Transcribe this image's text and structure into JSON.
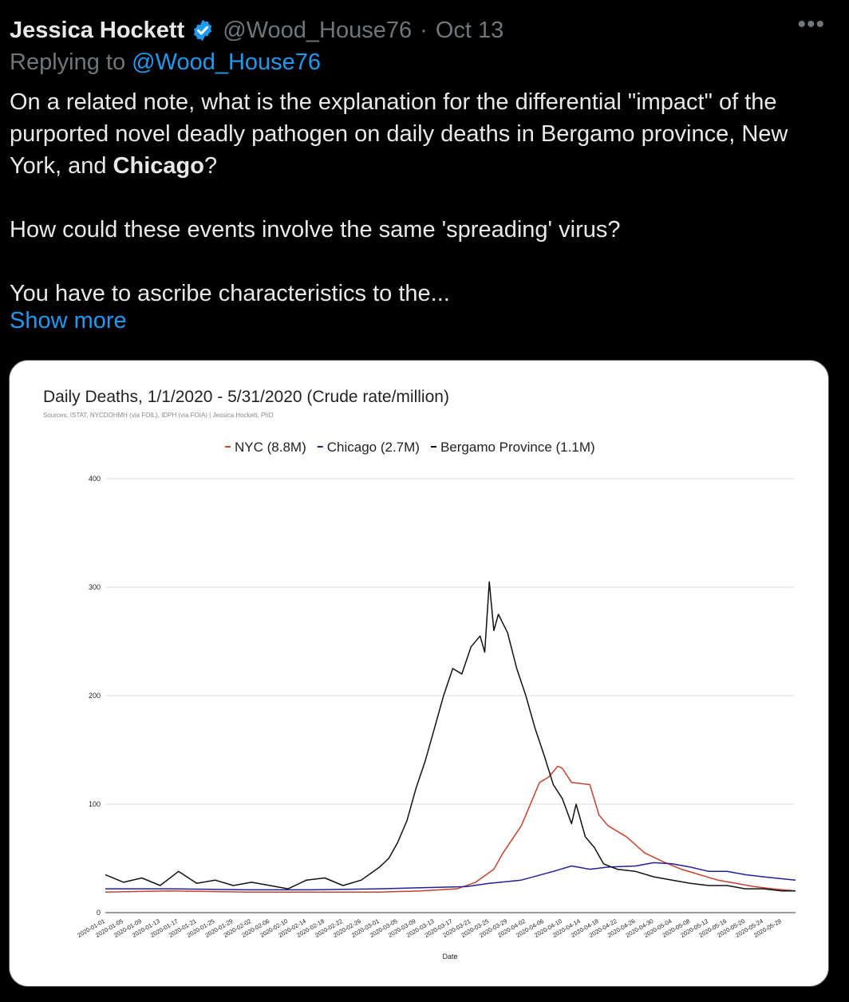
{
  "tweet": {
    "author_name": "Jessica Hockett",
    "handle": "@Wood_House76",
    "separator": "·",
    "date": "Oct 13",
    "more_label": "•••",
    "replying_prefix": "Replying to",
    "replying_handle": "@Wood_House76",
    "text_line1": "On a related note, what is the explanation for the differential \"impact\" of the purported novel deadly pathogen on daily deaths in Bergamo province, New York, and ",
    "text_bold": "Chicago",
    "text_line1_end": "?",
    "text_line2": "How could these events involve the same 'spreading' virus?",
    "text_line3": "You have to ascribe characteristics to the...",
    "show_more": "Show more"
  },
  "colors": {
    "verified_badge": "#1d9bf0",
    "link": "#1d9bf0",
    "nyc": "#c8412d",
    "chicago": "#1f1fa0",
    "bergamo": "#111111"
  },
  "chart_data": {
    "type": "line",
    "title": "Daily Deaths, 1/1/2020 - 5/31/2020 (Crude rate/million)",
    "subtitle": "Sources: ISTAT, NYCDOHMH (via FOIL), IDPH (via FOIA) | Jessica Hockett, PhD",
    "xlabel": "Date",
    "ylabel": "",
    "ylim": [
      0,
      400
    ],
    "yticks": [
      0,
      100,
      200,
      300,
      400
    ],
    "legend_position": "top-center",
    "grid": true,
    "x_tick_labels": [
      "2020-01-01",
      "2020-01-05",
      "2020-01-09",
      "2020-01-13",
      "2020-01-17",
      "2020-01-21",
      "2020-01-25",
      "2020-01-29",
      "2020-02-02",
      "2020-02-06",
      "2020-02-10",
      "2020-02-14",
      "2020-02-18",
      "2020-02-22",
      "2020-02-26",
      "2020-03-01",
      "2020-03-05",
      "2020-03-09",
      "2020-03-13",
      "2020-03-17",
      "2020-03-21",
      "2020-03-25",
      "2020-03-29",
      "2020-04-02",
      "2020-04-06",
      "2020-04-10",
      "2020-04-14",
      "2020-04-18",
      "2020-04-22",
      "2020-04-26",
      "2020-04-30",
      "2020-05-04",
      "2020-05-08",
      "2020-05-12",
      "2020-05-16",
      "2020-05-20",
      "2020-05-24",
      "2020-05-28"
    ],
    "x_start": "2020-01-01",
    "x_end": "2020-05-31",
    "series": [
      {
        "name": "NYC (8.8M)",
        "color": "#c8412d",
        "points": [
          [
            "2020-01-01",
            19
          ],
          [
            "2020-01-15",
            20
          ],
          [
            "2020-02-01",
            19
          ],
          [
            "2020-02-15",
            19
          ],
          [
            "2020-03-01",
            19
          ],
          [
            "2020-03-10",
            20
          ],
          [
            "2020-03-18",
            22
          ],
          [
            "2020-03-22",
            28
          ],
          [
            "2020-03-26",
            40
          ],
          [
            "2020-03-28",
            55
          ],
          [
            "2020-04-01",
            80
          ],
          [
            "2020-04-03",
            100
          ],
          [
            "2020-04-05",
            120
          ],
          [
            "2020-04-07",
            125
          ],
          [
            "2020-04-09",
            135
          ],
          [
            "2020-04-10",
            133
          ],
          [
            "2020-04-12",
            120
          ],
          [
            "2020-04-16",
            118
          ],
          [
            "2020-04-18",
            90
          ],
          [
            "2020-04-20",
            80
          ],
          [
            "2020-04-24",
            70
          ],
          [
            "2020-04-28",
            55
          ],
          [
            "2020-05-02",
            47
          ],
          [
            "2020-05-06",
            40
          ],
          [
            "2020-05-10",
            35
          ],
          [
            "2020-05-14",
            30
          ],
          [
            "2020-05-18",
            27
          ],
          [
            "2020-05-22",
            24
          ],
          [
            "2020-05-26",
            22
          ],
          [
            "2020-05-31",
            20
          ]
        ]
      },
      {
        "name": "Chicago (2.7M)",
        "color": "#1f1fa0",
        "points": [
          [
            "2020-01-01",
            22
          ],
          [
            "2020-01-15",
            22
          ],
          [
            "2020-02-01",
            21
          ],
          [
            "2020-02-15",
            21
          ],
          [
            "2020-03-01",
            22
          ],
          [
            "2020-03-10",
            23
          ],
          [
            "2020-03-20",
            24
          ],
          [
            "2020-03-25",
            27
          ],
          [
            "2020-04-01",
            30
          ],
          [
            "2020-04-08",
            38
          ],
          [
            "2020-04-12",
            43
          ],
          [
            "2020-04-16",
            40
          ],
          [
            "2020-04-20",
            42
          ],
          [
            "2020-04-26",
            43
          ],
          [
            "2020-04-30",
            46
          ],
          [
            "2020-05-04",
            45
          ],
          [
            "2020-05-08",
            42
          ],
          [
            "2020-05-12",
            38
          ],
          [
            "2020-05-16",
            38
          ],
          [
            "2020-05-20",
            35
          ],
          [
            "2020-05-24",
            33
          ],
          [
            "2020-05-31",
            30
          ]
        ]
      },
      {
        "name": "Bergamo Province (1.1M)",
        "color": "#111111",
        "points": [
          [
            "2020-01-01",
            35
          ],
          [
            "2020-01-05",
            28
          ],
          [
            "2020-01-09",
            32
          ],
          [
            "2020-01-13",
            25
          ],
          [
            "2020-01-17",
            38
          ],
          [
            "2020-01-21",
            27
          ],
          [
            "2020-01-25",
            30
          ],
          [
            "2020-01-29",
            25
          ],
          [
            "2020-02-02",
            28
          ],
          [
            "2020-02-06",
            25
          ],
          [
            "2020-02-10",
            22
          ],
          [
            "2020-02-14",
            30
          ],
          [
            "2020-02-18",
            32
          ],
          [
            "2020-02-22",
            25
          ],
          [
            "2020-02-26",
            30
          ],
          [
            "2020-03-01",
            42
          ],
          [
            "2020-03-03",
            50
          ],
          [
            "2020-03-05",
            65
          ],
          [
            "2020-03-07",
            85
          ],
          [
            "2020-03-09",
            115
          ],
          [
            "2020-03-11",
            140
          ],
          [
            "2020-03-13",
            170
          ],
          [
            "2020-03-15",
            200
          ],
          [
            "2020-03-17",
            225
          ],
          [
            "2020-03-19",
            220
          ],
          [
            "2020-03-21",
            245
          ],
          [
            "2020-03-23",
            255
          ],
          [
            "2020-03-24",
            240
          ],
          [
            "2020-03-25",
            305
          ],
          [
            "2020-03-26",
            260
          ],
          [
            "2020-03-27",
            275
          ],
          [
            "2020-03-29",
            258
          ],
          [
            "2020-03-31",
            225
          ],
          [
            "2020-04-02",
            200
          ],
          [
            "2020-04-04",
            170
          ],
          [
            "2020-04-06",
            145
          ],
          [
            "2020-04-08",
            118
          ],
          [
            "2020-04-10",
            105
          ],
          [
            "2020-04-12",
            82
          ],
          [
            "2020-04-13",
            100
          ],
          [
            "2020-04-15",
            70
          ],
          [
            "2020-04-17",
            60
          ],
          [
            "2020-04-19",
            45
          ],
          [
            "2020-04-22",
            40
          ],
          [
            "2020-04-26",
            38
          ],
          [
            "2020-04-30",
            33
          ],
          [
            "2020-05-04",
            30
          ],
          [
            "2020-05-08",
            27
          ],
          [
            "2020-05-12",
            25
          ],
          [
            "2020-05-16",
            25
          ],
          [
            "2020-05-20",
            22
          ],
          [
            "2020-05-24",
            22
          ],
          [
            "2020-05-28",
            20
          ],
          [
            "2020-05-31",
            20
          ]
        ]
      }
    ]
  }
}
